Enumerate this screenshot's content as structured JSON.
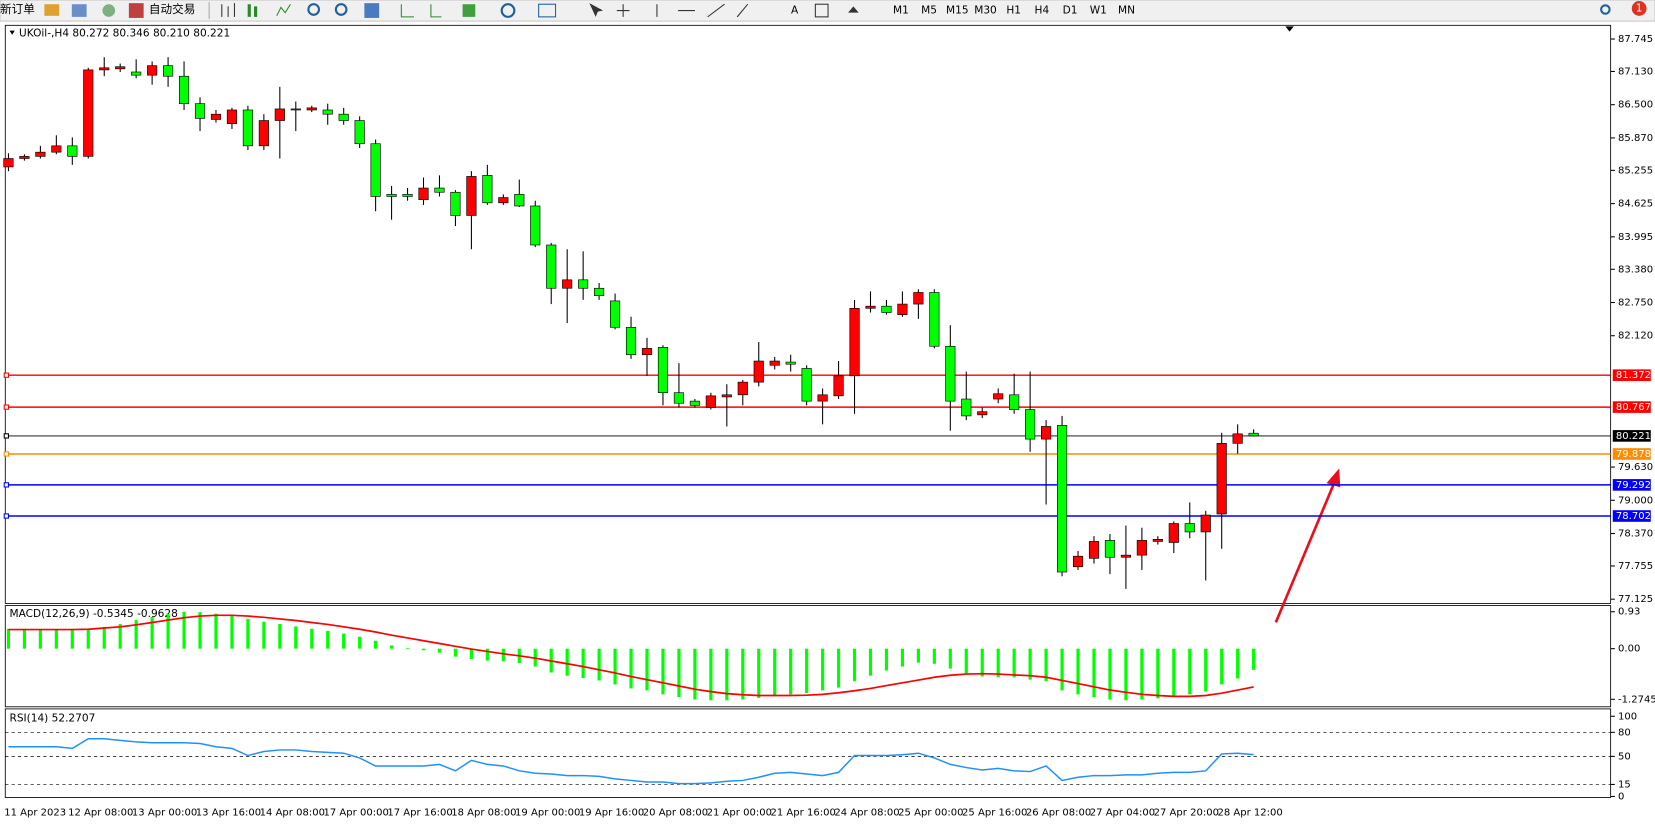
{
  "toolbar": {
    "buttons": [
      "新订单",
      "自动交易"
    ],
    "timeframes": [
      "M1",
      "M5",
      "M15",
      "M30",
      "H1",
      "H4",
      "D1",
      "W1",
      "MN"
    ],
    "badge": "1"
  },
  "chart_data": [
    {
      "type": "candlestick",
      "title": "UKOil-,H4 80.272 80.346 80.210 80.221",
      "up_color": "#ff0000",
      "down_color": "#00ff00",
      "categories": [
        "11 Apr 2023",
        null,
        null,
        null,
        "12 Apr 08:00",
        null,
        null,
        null,
        "13 Apr 00:00",
        null,
        null,
        null,
        "13 Apr 16:00",
        null,
        null,
        null,
        "14 Apr 08:00",
        null,
        null,
        null,
        "17 Apr 00:00",
        null,
        null,
        null,
        "17 Apr 16:00",
        null,
        null,
        null,
        "18 Apr 08:00",
        null,
        null,
        null,
        "19 Apr 00:00",
        null,
        null,
        null,
        "19 Apr 16:00",
        null,
        null,
        null,
        "20 Apr 08:00",
        null,
        null,
        null,
        "21 Apr 00:00",
        null,
        null,
        null,
        "21 Apr 16:00",
        null,
        null,
        null,
        "24 Apr 08:00",
        null,
        null,
        null,
        "25 Apr 00:00",
        null,
        null,
        null,
        "25 Apr 16:00",
        null,
        null,
        null,
        "26 Apr 08:00",
        null,
        null,
        null,
        "27 Apr 04:00",
        null,
        null,
        null,
        "27 Apr 20:00",
        null,
        null,
        null,
        "28 Apr 12:00",
        null,
        null
      ],
      "open": [
        85.32,
        85.48,
        85.52,
        85.6,
        85.72,
        85.52,
        87.16,
        87.18,
        87.12,
        87.06,
        87.24,
        87.04,
        86.52,
        86.22,
        86.14,
        86.4,
        85.72,
        86.2,
        86.4,
        86.4,
        86.4,
        86.32,
        86.2,
        85.76,
        84.8,
        84.8,
        84.7,
        84.92,
        84.84,
        84.4,
        85.16,
        84.64,
        84.8,
        84.58,
        83.84,
        83.02,
        83.18,
        83.02,
        82.78,
        82.28,
        81.76,
        81.9,
        81.04,
        80.88,
        80.76,
        80.96,
        81.0,
        81.24,
        81.56,
        81.62,
        81.5,
        80.88,
        80.98,
        81.36,
        82.64,
        82.68,
        82.52,
        82.72,
        82.94,
        81.92,
        80.92,
        80.62,
        80.92,
        81.0,
        80.72,
        80.16,
        80.42,
        77.74,
        77.9,
        78.24,
        77.92,
        77.96,
        78.22,
        78.2,
        78.56,
        78.4,
        78.74,
        80.08,
        80.272
      ],
      "high": [
        85.58,
        85.56,
        85.72,
        85.92,
        85.88,
        87.2,
        87.4,
        87.28,
        87.36,
        87.32,
        87.4,
        87.32,
        86.64,
        86.4,
        86.44,
        86.48,
        86.32,
        86.84,
        86.56,
        86.48,
        86.52,
        86.44,
        86.28,
        85.84,
        84.96,
        84.92,
        85.12,
        85.16,
        84.88,
        85.24,
        85.36,
        84.8,
        85.08,
        84.68,
        83.88,
        83.76,
        83.72,
        83.12,
        82.92,
        82.48,
        82.08,
        81.94,
        81.6,
        80.92,
        81.04,
        81.2,
        81.28,
        82.0,
        81.72,
        81.76,
        81.56,
        81.12,
        81.64,
        82.8,
        82.96,
        82.8,
        82.96,
        83.0,
        83.0,
        82.32,
        81.44,
        80.76,
        81.12,
        81.4,
        81.44,
        80.52,
        80.6,
        78.04,
        78.32,
        78.36,
        78.52,
        78.48,
        78.32,
        78.6,
        78.96,
        78.8,
        80.28,
        80.44,
        80.346
      ],
      "low": [
        85.24,
        85.44,
        85.48,
        85.56,
        85.36,
        85.48,
        87.04,
        87.12,
        87.0,
        86.88,
        86.84,
        86.4,
        86.0,
        86.16,
        86.04,
        85.64,
        85.64,
        85.48,
        86.0,
        86.36,
        86.12,
        86.12,
        85.68,
        84.48,
        84.32,
        84.68,
        84.6,
        84.76,
        84.2,
        83.76,
        84.6,
        84.6,
        84.56,
        83.8,
        82.72,
        82.36,
        82.8,
        82.8,
        82.24,
        81.68,
        81.36,
        80.8,
        80.76,
        80.76,
        80.72,
        80.4,
        80.8,
        81.16,
        81.48,
        81.44,
        80.8,
        80.44,
        80.92,
        80.64,
        82.56,
        82.52,
        82.48,
        82.44,
        81.88,
        80.32,
        80.52,
        80.56,
        80.84,
        80.64,
        79.92,
        78.92,
        77.56,
        77.68,
        77.8,
        77.6,
        77.32,
        77.68,
        78.16,
        78.0,
        78.28,
        77.48,
        78.08,
        79.88,
        80.21
      ],
      "close": [
        85.48,
        85.52,
        85.6,
        85.72,
        85.52,
        87.16,
        87.2,
        87.22,
        87.06,
        87.24,
        87.04,
        86.52,
        86.24,
        86.32,
        86.4,
        85.72,
        86.2,
        86.42,
        86.42,
        86.44,
        86.32,
        86.2,
        85.76,
        84.76,
        84.76,
        84.76,
        84.92,
        84.84,
        84.4,
        85.14,
        84.64,
        84.74,
        84.58,
        83.84,
        83.02,
        83.18,
        83.02,
        82.88,
        82.28,
        81.76,
        81.88,
        81.04,
        80.84,
        80.8,
        80.98,
        81.0,
        81.24,
        81.64,
        81.64,
        81.58,
        80.88,
        81.0,
        81.36,
        82.64,
        82.68,
        82.56,
        82.72,
        82.94,
        81.92,
        80.88,
        80.6,
        80.68,
        81.02,
        80.72,
        80.16,
        80.4,
        77.64,
        77.94,
        78.22,
        77.92,
        77.96,
        78.24,
        78.26,
        78.56,
        78.4,
        78.72,
        80.08,
        80.26,
        80.221
      ],
      "ylim": [
        77.125,
        87.745
      ],
      "yticks": [
        87.745,
        {
          "value": 87.13,
          "label": "87.130"
        },
        {
          "value": 86.5,
          "label": "86.500"
        },
        {
          "value": 85.87,
          "label": "85.870"
        },
        85.255,
        84.625,
        83.995,
        {
          "value": 83.38,
          "label": "83.380"
        },
        {
          "value": 82.75,
          "label": "82.750"
        },
        {
          "value": 82.12,
          "label": "82.120"
        },
        {
          "value": 79.63,
          "label": "79.630"
        },
        {
          "value": 79.0,
          "label": "79.000"
        },
        {
          "value": 78.37,
          "label": "78.370"
        },
        77.755,
        77.125
      ],
      "levels": [
        {
          "value": 81.372,
          "color": "#ff0000"
        },
        {
          "value": 80.767,
          "color": "#ff0000"
        },
        {
          "value": 80.221,
          "color": "#000000"
        },
        {
          "value": 79.878,
          "color": "#ff8c00"
        },
        {
          "value": 79.292,
          "color": "#0000ff"
        },
        {
          "value": 78.702,
          "color": "#0000ff"
        }
      ]
    },
    {
      "type": "macd",
      "title": "MACD(12,26,9) -0.5345 -0.9628",
      "color": "#00ff00",
      "signal_color": "#ff0000",
      "values": [
        0.5,
        0.5,
        0.48,
        0.48,
        0.5,
        0.5,
        0.55,
        0.62,
        0.72,
        0.8,
        0.88,
        0.93,
        0.92,
        0.88,
        0.82,
        0.75,
        0.68,
        0.62,
        0.56,
        0.5,
        0.45,
        0.38,
        0.3,
        0.2,
        0.08,
        0.02,
        -0.04,
        -0.1,
        -0.2,
        -0.26,
        -0.3,
        -0.32,
        -0.36,
        -0.45,
        -0.6,
        -0.68,
        -0.74,
        -0.8,
        -0.9,
        -1.0,
        -1.05,
        -1.15,
        -1.22,
        -1.28,
        -1.3,
        -1.3,
        -1.28,
        -1.24,
        -1.2,
        -1.15,
        -1.12,
        -1.05,
        -0.98,
        -0.82,
        -0.68,
        -0.55,
        -0.45,
        -0.35,
        -0.38,
        -0.5,
        -0.62,
        -0.7,
        -0.72,
        -0.72,
        -0.78,
        -0.82,
        -1.05,
        -1.15,
        -1.22,
        -1.28,
        -1.3,
        -1.28,
        -1.25,
        -1.2,
        -1.15,
        -1.08,
        -0.9,
        -0.75,
        -0.5345
      ],
      "signal": [
        0.48,
        0.48,
        0.48,
        0.48,
        0.48,
        0.49,
        0.52,
        0.55,
        0.6,
        0.66,
        0.72,
        0.78,
        0.82,
        0.84,
        0.84,
        0.82,
        0.79,
        0.75,
        0.71,
        0.66,
        0.61,
        0.55,
        0.49,
        0.42,
        0.34,
        0.27,
        0.2,
        0.13,
        0.06,
        -0.01,
        -0.07,
        -0.13,
        -0.18,
        -0.24,
        -0.31,
        -0.38,
        -0.45,
        -0.53,
        -0.61,
        -0.7,
        -0.78,
        -0.86,
        -0.94,
        -1.02,
        -1.08,
        -1.13,
        -1.16,
        -1.18,
        -1.18,
        -1.18,
        -1.17,
        -1.15,
        -1.11,
        -1.06,
        -1.0,
        -0.93,
        -0.86,
        -0.79,
        -0.72,
        -0.67,
        -0.64,
        -0.63,
        -0.64,
        -0.66,
        -0.68,
        -0.72,
        -0.8,
        -0.88,
        -0.96,
        -1.04,
        -1.1,
        -1.15,
        -1.18,
        -1.2,
        -1.2,
        -1.18,
        -1.12,
        -1.04,
        -0.9628
      ],
      "ylim": [
        -1.41,
        1.06
      ],
      "yticks": [
        0.93,
        {
          "value": 0,
          "label": "0.00"
        },
        -1.2745
      ]
    },
    {
      "type": "rsi",
      "title": "RSI(14) 52.2707",
      "color": "#1e90ff",
      "grid": "dashed",
      "values": [
        62,
        62,
        62,
        62,
        60,
        72,
        72,
        70,
        68,
        67,
        67,
        67,
        66,
        62,
        60,
        51,
        56,
        58,
        58,
        56,
        55,
        54,
        48,
        38,
        38,
        38,
        38,
        40,
        32,
        45,
        40,
        38,
        32,
        29,
        28,
        26,
        26,
        25,
        22,
        20,
        18,
        18,
        16,
        16,
        17,
        19,
        20,
        24,
        29,
        30,
        28,
        26,
        30,
        51,
        51,
        51,
        52,
        54,
        48,
        40,
        36,
        33,
        35,
        32,
        31,
        38,
        20,
        24,
        26,
        26,
        27,
        27,
        29,
        30,
        30,
        32,
        53,
        54,
        52.2707
      ],
      "ylim": [
        0,
        100
      ],
      "yticks": [
        100,
        80,
        50,
        15,
        0
      ]
    }
  ]
}
